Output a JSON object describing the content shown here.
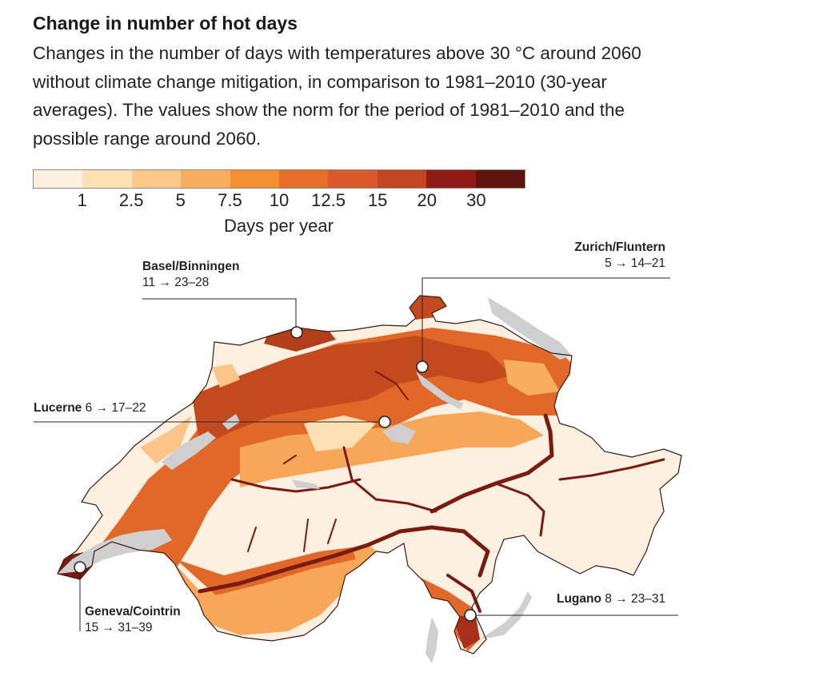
{
  "title": "Change in number of hot days",
  "subtitle": "Changes in the number of days with temperatures above 30 °C around 2060 without climate change mitigation, in comparison to 1981–2010 (30-year averages). The values show the norm for the period of 1981–2010 and the possible range around 2060.",
  "legend": {
    "colors": [
      "#fdf0e0",
      "#fde0b4",
      "#fcc98a",
      "#f9ae5f",
      "#f28f30",
      "#e66e28",
      "#d85a2a",
      "#bf4620",
      "#8e1c14",
      "#5e140c"
    ],
    "ticks": [
      "1",
      "2.5",
      "5",
      "7.5",
      "10",
      "12.5",
      "15",
      "20",
      "30"
    ],
    "title": "Days per year"
  },
  "stations": {
    "basel": {
      "name": "Basel/Binningen",
      "values": "11 → 23–28"
    },
    "zurich": {
      "name": "Zurich/Fluntern",
      "values": "5 → 14–21"
    },
    "lucerne": {
      "name": "Lucerne",
      "values": "6 → 17–22"
    },
    "geneva": {
      "name": "Geneva/Cointrin",
      "values": "15 → 31–39"
    },
    "lugano": {
      "name": "Lugano",
      "values": "8 → 23–31"
    }
  },
  "map_colors": {
    "land_low": "#fdf0e0",
    "lake": "#cfcfcf",
    "river": "#7a1a10",
    "border": "#3a1a10"
  }
}
